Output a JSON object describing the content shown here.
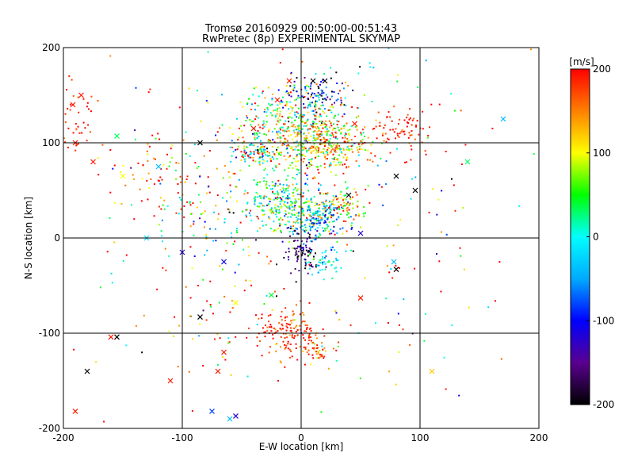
{
  "chart_data": {
    "type": "scatter",
    "title_line1": "Tromsø 20160929 00:50:00-00:51:43",
    "title_line2": "RwPretec (8p) EXPERIMENTAL SKYMAP",
    "xlabel": "E-W location [km]",
    "ylabel": "N-S location [km]",
    "xlim": [
      -200,
      200
    ],
    "ylim": [
      -200,
      200
    ],
    "x_ticks": [
      "-200",
      "-100",
      "0",
      "100",
      "200"
    ],
    "y_ticks": [
      "-200",
      "-100",
      "0",
      "100",
      "200"
    ],
    "grid_values": [
      -100,
      0,
      100
    ],
    "colorbar": {
      "label": "[m/s]",
      "range": [
        -200,
        200
      ],
      "ticks": [
        "200",
        "100",
        "0",
        "-100",
        "-200"
      ],
      "colors": [
        "#000000",
        "#5a0090",
        "#0000ff",
        "#00aaff",
        "#00ffff",
        "#00ff00",
        "#ffff00",
        "#ff8000",
        "#ff0000"
      ]
    },
    "clusters": [
      {
        "cx": 0,
        "cy": 115,
        "sx": 25,
        "sy": 22,
        "vmean": 80,
        "vsd": 90,
        "n": 520
      },
      {
        "cx": 25,
        "cy": 100,
        "sx": 18,
        "sy": 12,
        "vmean": 130,
        "vsd": 60,
        "n": 200
      },
      {
        "cx": 10,
        "cy": 150,
        "sx": 14,
        "sy": 10,
        "vmean": -100,
        "vsd": 90,
        "n": 90
      },
      {
        "cx": -40,
        "cy": 90,
        "sx": 10,
        "sy": 6,
        "vmean": 60,
        "vsd": 140,
        "n": 90
      },
      {
        "cx": -15,
        "cy": 35,
        "sx": 20,
        "sy": 16,
        "vmean": 40,
        "vsd": 70,
        "n": 320
      },
      {
        "cx": 15,
        "cy": 20,
        "sx": 12,
        "sy": 10,
        "vmean": -40,
        "vsd": 60,
        "n": 170
      },
      {
        "cx": 35,
        "cy": 35,
        "sx": 10,
        "sy": 8,
        "vmean": 120,
        "vsd": 60,
        "n": 70
      },
      {
        "cx": 0,
        "cy": -15,
        "sx": 8,
        "sy": 12,
        "vmean": -160,
        "vsd": 40,
        "n": 90
      },
      {
        "cx": 20,
        "cy": -25,
        "sx": 8,
        "sy": 8,
        "vmean": -20,
        "vsd": 40,
        "n": 50
      },
      {
        "cx": -10,
        "cy": -100,
        "sx": 15,
        "sy": 12,
        "vmean": 185,
        "vsd": 30,
        "n": 140
      },
      {
        "cx": 15,
        "cy": -120,
        "sx": 8,
        "sy": 8,
        "vmean": 170,
        "vsd": 40,
        "n": 40
      },
      {
        "cx": 85,
        "cy": 115,
        "sx": 12,
        "sy": 12,
        "vmean": 190,
        "vsd": 20,
        "n": 70
      },
      {
        "cx": -190,
        "cy": 130,
        "sx": 10,
        "sy": 20,
        "vmean": 190,
        "vsd": 20,
        "n": 40
      },
      {
        "cx": -120,
        "cy": 60,
        "sx": 25,
        "sy": 25,
        "vmean": 160,
        "vsd": 80,
        "n": 60
      },
      {
        "cx": -80,
        "cy": 30,
        "sx": 25,
        "sy": 30,
        "vmean": 80,
        "vsd": 110,
        "n": 80
      },
      {
        "cx": -80,
        "cy": -90,
        "sx": 20,
        "sy": 30,
        "vmean": 150,
        "vsd": 100,
        "n": 40
      },
      {
        "cx": 0,
        "cy": 30,
        "sx": 110,
        "sy": 100,
        "vmean": 100,
        "vsd": 140,
        "n": 320
      }
    ],
    "x_markers": [
      {
        "x": -192,
        "y": 140,
        "v": 190
      },
      {
        "x": -185,
        "y": 150,
        "v": 190
      },
      {
        "x": -190,
        "y": -182,
        "v": 190
      },
      {
        "x": -180,
        "y": -140,
        "v": -200
      },
      {
        "x": -160,
        "y": -104,
        "v": 190
      },
      {
        "x": -155,
        "y": -104,
        "v": -200
      },
      {
        "x": -155,
        "y": 107,
        "v": 30
      },
      {
        "x": -130,
        "y": 0,
        "v": -20
      },
      {
        "x": -110,
        "y": -150,
        "v": 190
      },
      {
        "x": -100,
        "y": -15,
        "v": -120
      },
      {
        "x": -85,
        "y": 100,
        "v": -200
      },
      {
        "x": -85,
        "y": -83,
        "v": -200
      },
      {
        "x": -75,
        "y": -182,
        "v": -80
      },
      {
        "x": -70,
        "y": -140,
        "v": 190
      },
      {
        "x": -65,
        "y": -120,
        "v": 190
      },
      {
        "x": -60,
        "y": -190,
        "v": -40
      },
      {
        "x": -55,
        "y": -187,
        "v": -120
      },
      {
        "x": -65,
        "y": -25,
        "v": -100
      },
      {
        "x": -55,
        "y": -68,
        "v": 100
      },
      {
        "x": -20,
        "y": 145,
        "v": 190
      },
      {
        "x": -10,
        "y": 165,
        "v": 190
      },
      {
        "x": 10,
        "y": 165,
        "v": -200
      },
      {
        "x": 20,
        "y": 165,
        "v": -200
      },
      {
        "x": -25,
        "y": -60,
        "v": 40
      },
      {
        "x": 40,
        "y": 45,
        "v": -200
      },
      {
        "x": 50,
        "y": 5,
        "v": -120
      },
      {
        "x": 50,
        "y": -63,
        "v": 190
      },
      {
        "x": 80,
        "y": 65,
        "v": -200
      },
      {
        "x": 80,
        "y": -33,
        "v": -200
      },
      {
        "x": 78,
        "y": -25,
        "v": -40
      },
      {
        "x": 96,
        "y": 50,
        "v": -200
      },
      {
        "x": 110,
        "y": -140,
        "v": 120
      },
      {
        "x": 140,
        "y": 80,
        "v": 30
      },
      {
        "x": 170,
        "y": 125,
        "v": -40
      },
      {
        "x": -120,
        "y": 75,
        "v": -40
      },
      {
        "x": -150,
        "y": 65,
        "v": 100
      },
      {
        "x": -175,
        "y": 80,
        "v": 190
      },
      {
        "x": -190,
        "y": 100,
        "v": 190
      },
      {
        "x": -40,
        "y": 115,
        "v": 190
      },
      {
        "x": 45,
        "y": 120,
        "v": 190
      }
    ]
  }
}
